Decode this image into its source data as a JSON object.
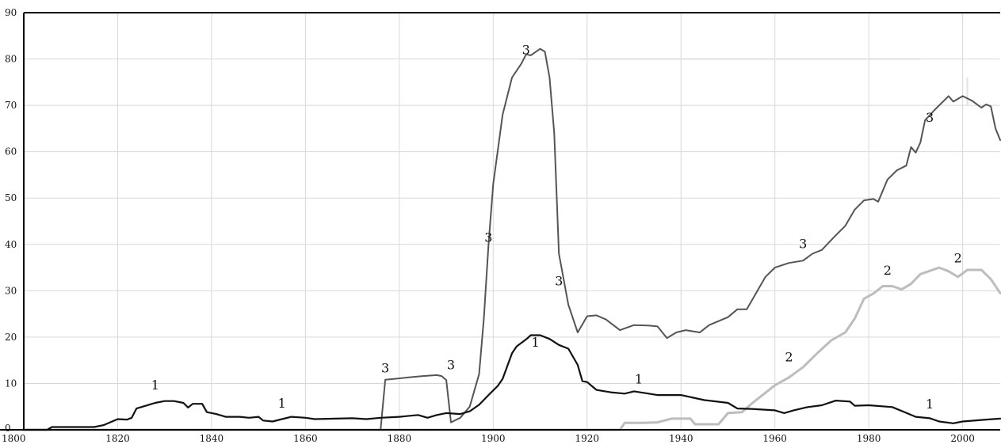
{
  "chart_data": {
    "type": "line",
    "title": "",
    "xlabel": "",
    "ylabel": "",
    "xlim": [
      1800,
      2008
    ],
    "ylim": [
      0,
      90
    ],
    "grid": true,
    "legend": "none",
    "x_ticks": [
      "1800",
      "1820",
      "1840",
      "1860",
      "1880",
      "1900",
      "1920",
      "1940",
      "1960",
      "1980",
      "2000"
    ],
    "y_ticks": [
      "0",
      "10",
      "20",
      "30",
      "40",
      "50",
      "60",
      "70",
      "80",
      "90"
    ],
    "series": [
      {
        "id": "s1",
        "label": "1",
        "color": "#111111",
        "points": [
          [
            1800,
            0
          ],
          [
            1805,
            0
          ],
          [
            1806,
            0.6
          ],
          [
            1815,
            0.6
          ],
          [
            1817,
            1
          ],
          [
            1820,
            2.3
          ],
          [
            1822,
            2.2
          ],
          [
            1823,
            2.6
          ],
          [
            1824,
            4.6
          ],
          [
            1826,
            5.2
          ],
          [
            1828,
            5.8
          ],
          [
            1830,
            6.2
          ],
          [
            1832,
            6.2
          ],
          [
            1834,
            5.8
          ],
          [
            1835,
            4.8
          ],
          [
            1836,
            5.6
          ],
          [
            1838,
            5.6
          ],
          [
            1839,
            3.8
          ],
          [
            1841,
            3.4
          ],
          [
            1843,
            2.8
          ],
          [
            1846,
            2.8
          ],
          [
            1848,
            2.6
          ],
          [
            1850,
            2.8
          ],
          [
            1851,
            2
          ],
          [
            1853,
            1.8
          ],
          [
            1855,
            2.3
          ],
          [
            1857,
            2.8
          ],
          [
            1860,
            2.6
          ],
          [
            1862,
            2.3
          ],
          [
            1870,
            2.5
          ],
          [
            1873,
            2.3
          ],
          [
            1876,
            2.6
          ],
          [
            1880,
            2.8
          ],
          [
            1884,
            3.2
          ],
          [
            1886,
            2.6
          ],
          [
            1888,
            3.2
          ],
          [
            1890,
            3.6
          ],
          [
            1893,
            3.4
          ],
          [
            1895,
            4
          ],
          [
            1897,
            5.4
          ],
          [
            1899,
            7.5
          ],
          [
            1901,
            9.5
          ],
          [
            1902,
            11
          ],
          [
            1904,
            16.5
          ],
          [
            1905,
            18
          ],
          [
            1907,
            19.5
          ],
          [
            1908,
            20.4
          ],
          [
            1910,
            20.4
          ],
          [
            1912,
            19.6
          ],
          [
            1914,
            18.3
          ],
          [
            1916,
            17.5
          ],
          [
            1918,
            14
          ],
          [
            1919,
            10.5
          ],
          [
            1920,
            10.3
          ],
          [
            1922,
            8.6
          ],
          [
            1925,
            8.1
          ],
          [
            1928,
            7.8
          ],
          [
            1930,
            8.3
          ],
          [
            1935,
            7.5
          ],
          [
            1940,
            7.5
          ],
          [
            1945,
            6.4
          ],
          [
            1950,
            5.8
          ],
          [
            1952,
            4.6
          ],
          [
            1955,
            4.5
          ],
          [
            1960,
            4.2
          ],
          [
            1962,
            3.6
          ],
          [
            1964,
            4.2
          ],
          [
            1967,
            4.9
          ],
          [
            1970,
            5.3
          ],
          [
            1973,
            6.3
          ],
          [
            1976,
            6.1
          ],
          [
            1977,
            5.2
          ],
          [
            1980,
            5.3
          ],
          [
            1985,
            4.9
          ],
          [
            1990,
            2.8
          ],
          [
            1993,
            2.5
          ],
          [
            1995,
            1.8
          ],
          [
            1998,
            1.4
          ],
          [
            2000,
            1.8
          ],
          [
            2005,
            2.2
          ],
          [
            2008,
            2.4
          ]
        ],
        "labels": [
          [
            1828,
            8.7
          ],
          [
            1855,
            4.8
          ],
          [
            1909,
            17.9
          ],
          [
            1931,
            10
          ],
          [
            1993,
            4.6
          ]
        ]
      },
      {
        "id": "s2",
        "label": "2",
        "color": "#bdbdbd",
        "points": [
          [
            1800,
            0
          ],
          [
            1927,
            0
          ],
          [
            1928,
            1.5
          ],
          [
            1932,
            1.5
          ],
          [
            1935,
            1.6
          ],
          [
            1938,
            2.4
          ],
          [
            1942,
            2.4
          ],
          [
            1943,
            1.2
          ],
          [
            1948,
            1.2
          ],
          [
            1950,
            3.6
          ],
          [
            1953,
            3.8
          ],
          [
            1955,
            5.6
          ],
          [
            1958,
            8
          ],
          [
            1960,
            9.6
          ],
          [
            1963,
            11.3
          ],
          [
            1966,
            13.5
          ],
          [
            1969,
            16.5
          ],
          [
            1972,
            19.3
          ],
          [
            1975,
            21
          ],
          [
            1977,
            24
          ],
          [
            1979,
            28.3
          ],
          [
            1981,
            29.4
          ],
          [
            1983,
            31
          ],
          [
            1985,
            31
          ],
          [
            1987,
            30.3
          ],
          [
            1989,
            31.5
          ],
          [
            1991,
            33.6
          ],
          [
            1993,
            34.3
          ],
          [
            1995,
            35
          ],
          [
            1997,
            34.2
          ],
          [
            1999,
            33
          ],
          [
            2001,
            34.5
          ],
          [
            2004,
            34.5
          ],
          [
            2006,
            32.5
          ],
          [
            2008,
            29.5
          ]
        ],
        "labels": [
          [
            1963,
            14.8
          ],
          [
            1984,
            33.5
          ],
          [
            1999,
            36.1
          ]
        ]
      },
      {
        "id": "s3",
        "label": "3",
        "color": "#555555",
        "points": [
          [
            1800,
            0
          ],
          [
            1876,
            0
          ],
          [
            1877,
            10.8
          ],
          [
            1879,
            11
          ],
          [
            1882,
            11.3
          ],
          [
            1885,
            11.6
          ],
          [
            1888,
            11.8
          ],
          [
            1889,
            11.6
          ],
          [
            1890,
            10.7
          ],
          [
            1891,
            1.6
          ],
          [
            1893,
            2.6
          ],
          [
            1895,
            5
          ],
          [
            1897,
            12
          ],
          [
            1898,
            24
          ],
          [
            1899,
            40
          ],
          [
            1900,
            53
          ],
          [
            1902,
            68
          ],
          [
            1904,
            76
          ],
          [
            1906,
            79
          ],
          [
            1907,
            81
          ],
          [
            1908,
            80.8
          ],
          [
            1909,
            81.5
          ],
          [
            1910,
            82.2
          ],
          [
            1911,
            81.6
          ],
          [
            1912,
            76
          ],
          [
            1913,
            64
          ],
          [
            1914,
            38
          ],
          [
            1916,
            27
          ],
          [
            1918,
            21
          ],
          [
            1920,
            24.5
          ],
          [
            1922,
            24.7
          ],
          [
            1924,
            23.8
          ],
          [
            1927,
            21.5
          ],
          [
            1930,
            22.6
          ],
          [
            1933,
            22.5
          ],
          [
            1935,
            22.3
          ],
          [
            1937,
            19.8
          ],
          [
            1939,
            21
          ],
          [
            1941,
            21.5
          ],
          [
            1944,
            21
          ],
          [
            1946,
            22.6
          ],
          [
            1950,
            24.3
          ],
          [
            1952,
            26
          ],
          [
            1954,
            26
          ],
          [
            1956,
            29.5
          ],
          [
            1958,
            33
          ],
          [
            1960,
            35
          ],
          [
            1963,
            36
          ],
          [
            1966,
            36.5
          ],
          [
            1968,
            38
          ],
          [
            1970,
            38.8
          ],
          [
            1973,
            42
          ],
          [
            1975,
            44
          ],
          [
            1977,
            47.5
          ],
          [
            1979,
            49.5
          ],
          [
            1981,
            49.8
          ],
          [
            1982,
            49.2
          ],
          [
            1984,
            54
          ],
          [
            1986,
            56
          ],
          [
            1988,
            57
          ],
          [
            1989,
            61
          ],
          [
            1990,
            59.8
          ],
          [
            1991,
            62
          ],
          [
            1992,
            66.8
          ],
          [
            1994,
            69
          ],
          [
            1996,
            71
          ],
          [
            1997,
            72
          ],
          [
            1998,
            70.8
          ],
          [
            2000,
            72
          ],
          [
            2002,
            71
          ],
          [
            2004,
            69.5
          ],
          [
            2005,
            70.2
          ],
          [
            2006,
            69.8
          ],
          [
            2007,
            65
          ],
          [
            2008,
            62.5
          ]
        ],
        "labels": [
          [
            1907,
            81
          ],
          [
            1899,
            40.6
          ],
          [
            1877,
            12.4
          ],
          [
            1891,
            13.1
          ],
          [
            1914,
            31.2
          ],
          [
            1966,
            39.2
          ],
          [
            1993,
            66.4
          ]
        ]
      }
    ]
  }
}
